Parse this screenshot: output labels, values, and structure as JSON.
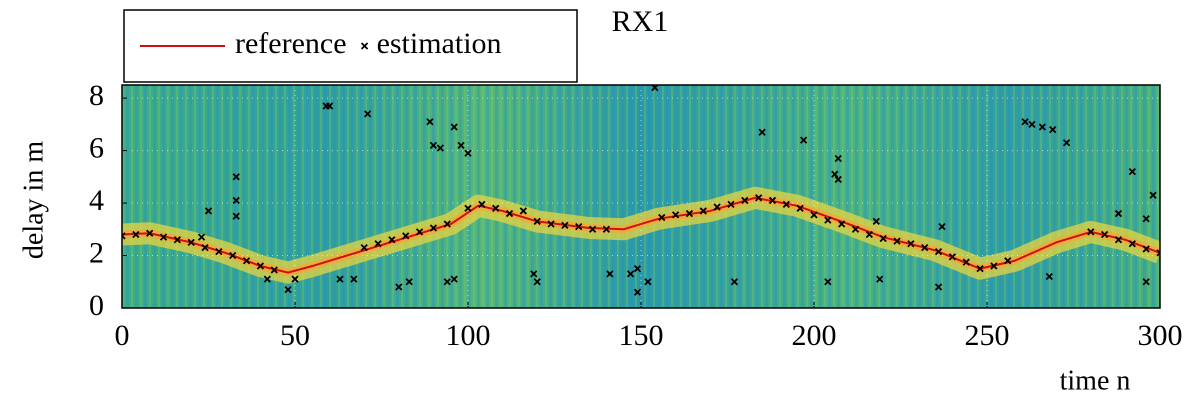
{
  "chart_data": {
    "type": "line",
    "title": "RX1",
    "xlabel": "time n",
    "ylabel": "delay in m",
    "xlim": [
      0,
      300
    ],
    "ylim": [
      0,
      8.5
    ],
    "xticks": [
      0,
      50,
      100,
      150,
      200,
      250,
      300
    ],
    "yticks": [
      0,
      2,
      4,
      6,
      8
    ],
    "grid": true,
    "legend": "top-left",
    "series": [
      {
        "name": "reference",
        "color": "#d01010",
        "mode": "line",
        "x": [
          0,
          8,
          20,
          30,
          40,
          48,
          55,
          70,
          80,
          95,
          103,
          110,
          120,
          135,
          145,
          155,
          170,
          183,
          195,
          210,
          220,
          235,
          248,
          258,
          270,
          280,
          290,
          300
        ],
        "values": [
          2.8,
          2.85,
          2.5,
          2.1,
          1.6,
          1.35,
          1.6,
          2.2,
          2.6,
          3.2,
          3.9,
          3.7,
          3.3,
          3.05,
          3.0,
          3.4,
          3.7,
          4.2,
          3.9,
          3.2,
          2.7,
          2.2,
          1.5,
          1.8,
          2.5,
          2.9,
          2.6,
          2.1
        ]
      },
      {
        "name": "estimation",
        "color": "#000000",
        "mode": "markers",
        "x": [
          0,
          4,
          8,
          12,
          16,
          20,
          24,
          28,
          32,
          36,
          40,
          44,
          70,
          74,
          78,
          82,
          86,
          90,
          94,
          100,
          104,
          108,
          112,
          116,
          120,
          124,
          128,
          132,
          136,
          140,
          156,
          160,
          164,
          168,
          172,
          176,
          180,
          184,
          188,
          192,
          196,
          200,
          204,
          208,
          212,
          216,
          220,
          224,
          228,
          232,
          236,
          240,
          244,
          248,
          252,
          256,
          280,
          284,
          288,
          292,
          296,
          300,
          23,
          25,
          33,
          33,
          33,
          42,
          48,
          50,
          59,
          60,
          63,
          67,
          71,
          80,
          83,
          89,
          90,
          92,
          94,
          96,
          96,
          98,
          100,
          119,
          120,
          141,
          147,
          149,
          149,
          152,
          154,
          177,
          185,
          197,
          204,
          206,
          207,
          207,
          218,
          219,
          237,
          236,
          261,
          263,
          266,
          269,
          273,
          268,
          288,
          292,
          296,
          296,
          298
        ],
        "values": [
          2.75,
          2.8,
          2.85,
          2.7,
          2.6,
          2.5,
          2.3,
          2.15,
          2.0,
          1.8,
          1.6,
          1.45,
          2.3,
          2.45,
          2.6,
          2.75,
          2.9,
          3.05,
          3.2,
          3.8,
          3.95,
          3.8,
          3.6,
          3.7,
          3.3,
          3.2,
          3.15,
          3.1,
          3.0,
          3.0,
          3.45,
          3.55,
          3.6,
          3.7,
          3.85,
          3.95,
          4.1,
          4.2,
          4.1,
          3.95,
          3.8,
          3.55,
          3.35,
          3.2,
          3.0,
          2.8,
          2.65,
          2.55,
          2.45,
          2.3,
          2.15,
          1.95,
          1.75,
          1.5,
          1.6,
          1.8,
          2.9,
          2.8,
          2.6,
          2.45,
          2.25,
          2.1,
          2.7,
          3.7,
          5.0,
          4.1,
          3.5,
          1.1,
          0.7,
          1.1,
          7.7,
          7.7,
          1.1,
          1.1,
          7.4,
          0.8,
          1.0,
          7.1,
          6.2,
          6.1,
          1.0,
          1.1,
          6.9,
          6.2,
          5.9,
          1.3,
          1.0,
          1.3,
          1.3,
          1.5,
          0.6,
          1.0,
          8.4,
          1.0,
          6.7,
          6.4,
          1.0,
          5.1,
          5.7,
          4.9,
          3.3,
          1.1,
          3.1,
          0.8,
          7.1,
          7.0,
          6.9,
          6.8,
          6.3,
          1.2,
          3.6,
          5.2,
          3.4,
          1.0,
          4.3
        ]
      }
    ]
  }
}
